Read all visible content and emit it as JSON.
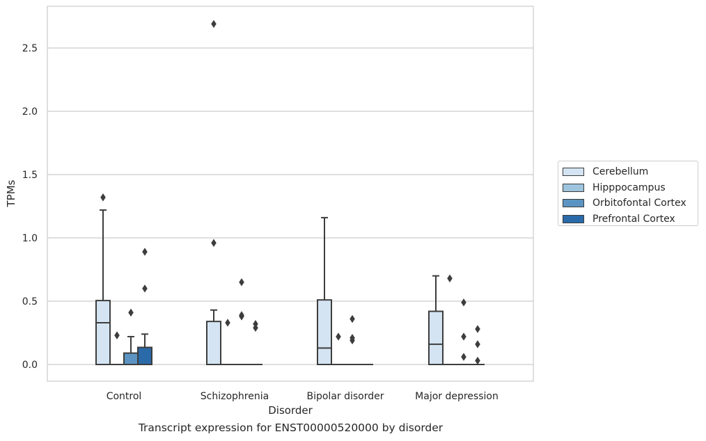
{
  "chart_data": {
    "type": "box",
    "title": "",
    "xlabel": "Disorder",
    "ylabel": "TPMs",
    "caption": "Transcript expression for ENST00000520000 by disorder",
    "ylim": [
      -0.13,
      2.85
    ],
    "yticks": [
      "0.0",
      "0.5",
      "1.0",
      "1.5",
      "2.0",
      "2.5"
    ],
    "ytick_values": [
      0.0,
      0.5,
      1.0,
      1.5,
      2.0,
      2.5
    ],
    "grid": "horizontal",
    "legend_placement": "right-center",
    "categories": [
      "Control",
      "Schizophrenia",
      "Bipolar disorder",
      "Major depression"
    ],
    "series": [
      {
        "name": "Cerebellum",
        "color": "#d4e4f2",
        "boxes": [
          {
            "q1": 0.0,
            "median": 0.33,
            "q3": 0.505,
            "whisker_low": 0.0,
            "whisker_high": 1.22,
            "outliers": [
              1.32
            ]
          },
          {
            "q1": 0.0,
            "median": 0.0,
            "q3": 0.34,
            "whisker_low": 0.0,
            "whisker_high": 0.43,
            "outliers": [
              0.96,
              2.69
            ]
          },
          {
            "q1": 0.0,
            "median": 0.13,
            "q3": 0.51,
            "whisker_low": 0.0,
            "whisker_high": 1.16,
            "outliers": []
          },
          {
            "q1": 0.0,
            "median": 0.16,
            "q3": 0.42,
            "whisker_low": 0.0,
            "whisker_high": 0.7,
            "outliers": []
          }
        ]
      },
      {
        "name": "Hipppocampus",
        "color": "#9ec4de",
        "boxes": [
          {
            "q1": 0.0,
            "median": 0.0,
            "q3": 0.0,
            "whisker_low": 0.0,
            "whisker_high": 0.0,
            "outliers": [
              0.23
            ]
          },
          {
            "q1": 0.0,
            "median": 0.0,
            "q3": 0.0,
            "whisker_low": 0.0,
            "whisker_high": 0.0,
            "outliers": [
              0.33
            ]
          },
          {
            "q1": 0.0,
            "median": 0.0,
            "q3": 0.0,
            "whisker_low": 0.0,
            "whisker_high": 0.0,
            "outliers": [
              0.22
            ]
          },
          {
            "q1": 0.0,
            "median": 0.0,
            "q3": 0.0,
            "whisker_low": 0.0,
            "whisker_high": 0.0,
            "outliers": [
              0.68
            ]
          }
        ]
      },
      {
        "name": "Orbitofontal Cortex",
        "color": "#5b94c2",
        "boxes": [
          {
            "q1": 0.0,
            "median": 0.0,
            "q3": 0.09,
            "whisker_low": 0.0,
            "whisker_high": 0.22,
            "outliers": [
              0.41
            ]
          },
          {
            "q1": 0.0,
            "median": 0.0,
            "q3": 0.0,
            "whisker_low": 0.0,
            "whisker_high": 0.0,
            "outliers": [
              0.38,
              0.39,
              0.65
            ]
          },
          {
            "q1": 0.0,
            "median": 0.0,
            "q3": 0.0,
            "whisker_low": 0.0,
            "whisker_high": 0.0,
            "outliers": [
              0.19,
              0.21,
              0.36
            ]
          },
          {
            "q1": 0.0,
            "median": 0.0,
            "q3": 0.0,
            "whisker_low": 0.0,
            "whisker_high": 0.0,
            "outliers": [
              0.06,
              0.22,
              0.49
            ]
          }
        ]
      },
      {
        "name": "Prefrontal Cortex",
        "color": "#2a6aa9",
        "boxes": [
          {
            "q1": 0.0,
            "median": 0.0,
            "q3": 0.135,
            "whisker_low": 0.0,
            "whisker_high": 0.24,
            "outliers": [
              0.6,
              0.89
            ]
          },
          {
            "q1": 0.0,
            "median": 0.0,
            "q3": 0.0,
            "whisker_low": 0.0,
            "whisker_high": 0.0,
            "outliers": [
              0.29,
              0.32
            ]
          },
          {
            "q1": 0.0,
            "median": 0.0,
            "q3": 0.0,
            "whisker_low": 0.0,
            "whisker_high": 0.0,
            "outliers": []
          },
          {
            "q1": 0.0,
            "median": 0.0,
            "q3": 0.0,
            "whisker_low": 0.0,
            "whisker_high": 0.0,
            "outliers": [
              0.03,
              0.16,
              0.28
            ]
          }
        ]
      }
    ]
  }
}
